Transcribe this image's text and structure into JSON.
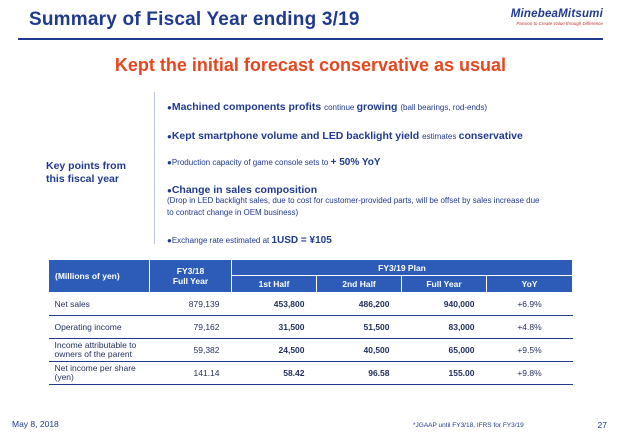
{
  "header": {
    "title": "Summary of Fiscal Year ending 3/19",
    "logo_name": "MinebeaMitsumi",
    "logo_tagline": "Passion to Create Value through Difference"
  },
  "headline": "Kept the initial forecast conservative as usual",
  "key_points": {
    "label_line1": "Key points from",
    "label_line2": "this fiscal year",
    "bullets": [
      {
        "marker": "●",
        "lead": "Machined components profits ",
        "mid": "continue ",
        "strong": "growing ",
        "tail": "(ball bearings, rod-ends)"
      },
      {
        "marker": "●",
        "lead": "Kept smartphone volume and LED backlight yield ",
        "mid": "estimates ",
        "strong": "conservative"
      },
      {
        "marker": "●",
        "lead": "Production capacity of game console sets to ",
        "strong": "+ 50% YoY"
      },
      {
        "marker": "●",
        "lead": "Change in sales composition",
        "note1": "(Drop in LED backlight sales, due to cost for customer-provided parts, will be offset by sales increase due",
        "note2": "to contract change in OEM business)"
      },
      {
        "marker": "●",
        "lead": "Exchange rate estimated at ",
        "strong": "1USD = ¥105"
      }
    ]
  },
  "table": {
    "unit_header": "(Millions of yen)",
    "fy18_header_l1": "FY3/18",
    "fy18_header_l2": "Full Year",
    "plan_header": "FY3/19 Plan",
    "sub_headers": [
      "1st Half",
      "2nd Half",
      "Full Year",
      "YoY"
    ],
    "rows": [
      {
        "label_l1": "Net sales",
        "label_l2": "",
        "fy18": "879,139",
        "h1": "453,800",
        "h2": "486,200",
        "full": "940,000",
        "yoy": "+6.9%"
      },
      {
        "label_l1": "Operating income",
        "label_l2": "",
        "fy18": "79,162",
        "h1": "31,500",
        "h2": "51,500",
        "full": "83,000",
        "yoy": "+4.8%"
      },
      {
        "label_l1": "Income attributable to",
        "label_l2": "owners of the parent",
        "fy18": "59,382",
        "h1": "24,500",
        "h2": "40,500",
        "full": "65,000",
        "yoy": "+9.5%"
      },
      {
        "label_l1": "Net income per share",
        "label_l2": "(yen)",
        "fy18": "141.14",
        "h1": "58.42",
        "h2": "96.58",
        "full": "155.00",
        "yoy": "+9.8%"
      }
    ]
  },
  "footer": {
    "date": "May 8, 2018",
    "note": "*JGAAP until FY3/18, IFRS for FY3/19",
    "page": "27"
  },
  "colors": {
    "title_blue": "#1f3a8f",
    "accent_orange": "#e8461e",
    "table_header_blue": "#2d5cb8"
  }
}
